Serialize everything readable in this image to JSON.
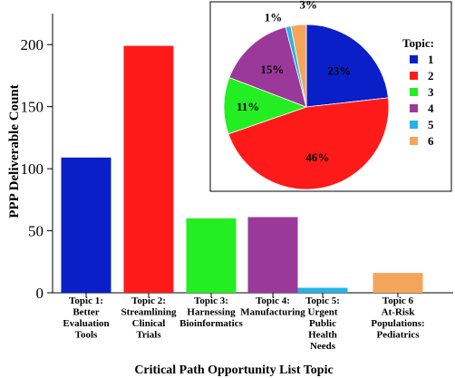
{
  "chart_data": [
    {
      "type": "bar",
      "xlabel": "Critical Path Opportunity List Topic",
      "ylabel": "PPP Deliverable Count",
      "ylim": [
        0,
        225
      ],
      "yticks": [
        0,
        50,
        100,
        150,
        200
      ],
      "grid": false,
      "categories": [
        [
          "Topic 1:",
          "Better",
          "Evaluation",
          "Tools"
        ],
        [
          "Topic 2:",
          "Streamlining",
          "Clinical",
          "Trials"
        ],
        [
          "Topic 3:",
          "Harnessing",
          "Bioinformatics"
        ],
        [
          "Topic 4:",
          "Manufacturing"
        ],
        [
          "Topic 5:",
          "Urgent",
          "Public",
          "Health",
          "Needs"
        ],
        [
          "Topic 6",
          "At-Risk",
          "Populations:",
          "Pediatrics"
        ]
      ],
      "values": [
        109,
        199,
        60,
        61,
        4,
        16
      ],
      "colors": [
        "#0a1fc8",
        "#ff1a1a",
        "#22ee22",
        "#9b399b",
        "#22b4e6",
        "#f5a55a"
      ]
    },
    {
      "type": "pie",
      "legend_title": "Topic:",
      "legend_position": "right",
      "labels": [
        "1",
        "2",
        "3",
        "4",
        "5",
        "6"
      ],
      "values": [
        23,
        46,
        11,
        15,
        1,
        3
      ],
      "value_labels": [
        "23%",
        "46%",
        "11%",
        "15%",
        "1%",
        "3%"
      ],
      "colors": [
        "#0a1fc8",
        "#ff1a1a",
        "#22ee22",
        "#9b399b",
        "#22b4e6",
        "#f5a55a"
      ]
    }
  ]
}
